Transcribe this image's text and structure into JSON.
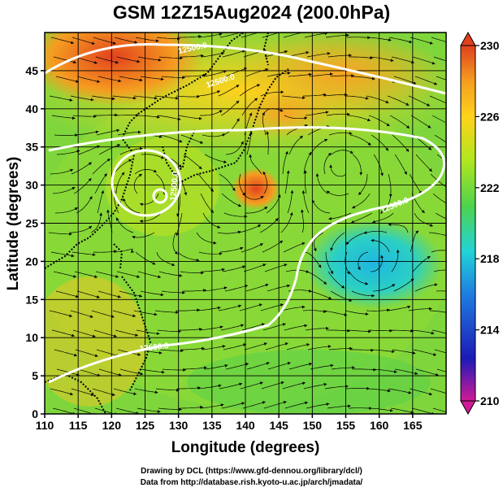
{
  "chart_data": {
    "type": "heatmap",
    "title": "GSM 12Z15Aug2024 (200.0hPa)",
    "xlabel": "Longitude (degrees)",
    "ylabel": "Latitude  (degrees)",
    "xlim": [
      110,
      170
    ],
    "ylim": [
      0,
      50
    ],
    "x_ticks": [
      110,
      115,
      120,
      125,
      130,
      135,
      140,
      145,
      150,
      155,
      160,
      165
    ],
    "y_ticks": [
      0,
      5,
      10,
      15,
      20,
      25,
      30,
      35,
      40,
      45
    ],
    "grid": true,
    "colorbar": {
      "range": [
        210,
        230
      ],
      "ticks": [
        230,
        226,
        222,
        218,
        214,
        210
      ],
      "colors": [
        "#d11a96",
        "#1c1ab8",
        "#1f7de0",
        "#22d3d8",
        "#4fd34c",
        "#b3e61e",
        "#ffd21c",
        "#f59d20",
        "#e0401e"
      ]
    },
    "contour_labels": [
      "12500.0",
      "12500.0",
      "12500.0",
      "12500.0",
      "12500.0"
    ],
    "contour_color": "#ffffff",
    "streamlines": true,
    "coastline_color": "#000000"
  },
  "footer": {
    "line1": "Drawing by DCL (https://www.gfd-dennou.org/library/dcl/)",
    "line2": "Data from http://database.rish.kyoto-u.ac.jp/arch/jmadata/"
  }
}
